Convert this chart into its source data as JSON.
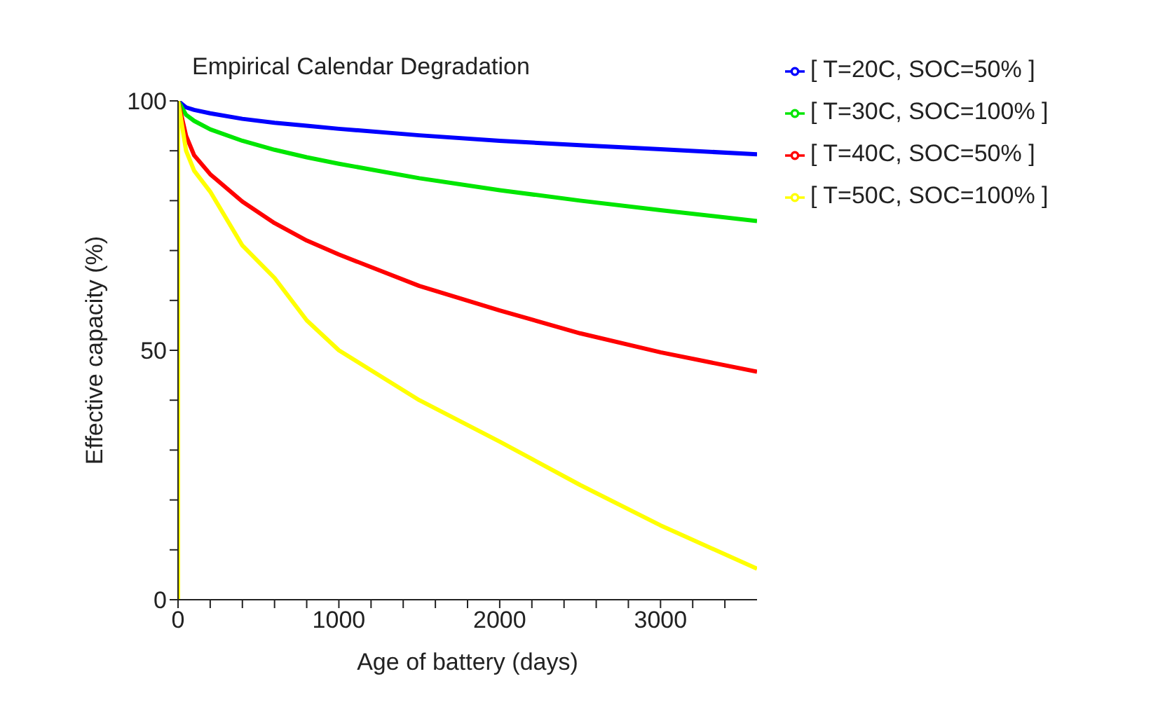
{
  "chart_data": {
    "type": "line",
    "title": "Empirical Calendar Degradation",
    "xlabel": "Age of battery (days)",
    "ylabel": "Effective capacity (%)",
    "xlim": [
      0,
      3600
    ],
    "ylim": [
      0,
      100
    ],
    "xticks": [
      0,
      {
        "value": 200,
        "label": null
      },
      {
        "value": 400,
        "label": null
      },
      {
        "value": 600,
        "label": null
      },
      {
        "value": 800,
        "label": null
      },
      1000,
      {
        "value": 1200,
        "label": null
      },
      {
        "value": 1400,
        "label": null
      },
      {
        "value": 1600,
        "label": null
      },
      {
        "value": 1800,
        "label": null
      },
      2000,
      {
        "value": 2200,
        "label": null
      },
      {
        "value": 2400,
        "label": null
      },
      {
        "value": 2600,
        "label": null
      },
      {
        "value": 2800,
        "label": null
      },
      3000,
      {
        "value": 3200,
        "label": null
      },
      {
        "value": 3400,
        "label": null
      }
    ],
    "yticks": [
      0,
      {
        "value": 10,
        "label": null
      },
      {
        "value": 20,
        "label": null
      },
      {
        "value": 30,
        "label": null
      },
      {
        "value": 40,
        "label": null
      },
      50,
      {
        "value": 60,
        "label": null
      },
      {
        "value": 70,
        "label": null
      },
      {
        "value": 80,
        "label": null
      },
      {
        "value": 90,
        "label": null
      },
      100
    ],
    "x": [
      0,
      50,
      100,
      200,
      400,
      600,
      800,
      1000,
      1500,
      2000,
      2500,
      3000,
      3600
    ],
    "series": [
      {
        "name": "[ T=20C, SOC=50% ]",
        "color": "#0000ff",
        "values": [
          100,
          98.7,
          98.2,
          97.5,
          96.4,
          95.6,
          95.0,
          94.4,
          93.1,
          92.0,
          91.1,
          90.3,
          89.3
        ]
      },
      {
        "name": "[ T=30C, SOC=100% ]",
        "color": "#00e600",
        "values": [
          100,
          97.2,
          96.0,
          94.3,
          92.0,
          90.2,
          88.7,
          87.4,
          84.5,
          82.1,
          80.0,
          78.1,
          75.9
        ]
      },
      {
        "name": "[ T=40C, SOC=50% ]",
        "color": "#ff0000",
        "values": [
          100,
          93.0,
          89.1,
          85.3,
          79.8,
          75.5,
          72.0,
          69.2,
          62.9,
          58.0,
          53.4,
          49.6,
          45.7
        ]
      },
      {
        "name": "[ T=50C, SOC=100% ]",
        "color": "#ffff00",
        "x": [
          0,
          0,
          50,
          100,
          200,
          400,
          600,
          800,
          1000,
          1500,
          2000,
          2500,
          3000,
          3600
        ],
        "values": [
          0,
          100,
          90,
          86,
          81.8,
          71,
          64.5,
          56,
          50,
          40,
          31.7,
          23,
          14.9,
          6.2
        ]
      }
    ],
    "legend": "right",
    "grid": false,
    "marker": "none",
    "line_style": "solid"
  }
}
